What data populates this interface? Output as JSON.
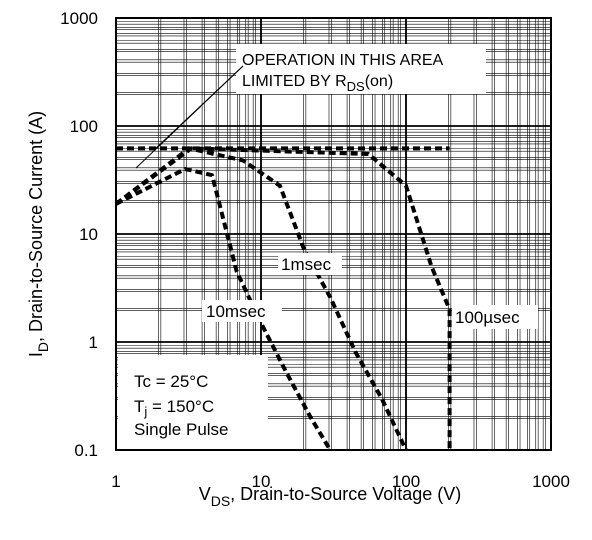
{
  "chart_data": {
    "type": "line",
    "title": "",
    "xlabel": {
      "main": "V",
      "sub": "DS",
      "rest": ", Drain-to-Source Voltage (V)"
    },
    "ylabel": {
      "main": "I",
      "sub": "D",
      "rest": ",  Drain-to-Source Current (A)"
    },
    "x_scale": "log",
    "y_scale": "log",
    "xlim": [
      1,
      1000
    ],
    "ylim": [
      0.1,
      1000
    ],
    "x_ticks": [
      "1",
      "10",
      "100",
      "1000"
    ],
    "y_ticks": [
      "0.1",
      "1",
      "10",
      "100",
      "1000"
    ],
    "grid": true,
    "series": [
      {
        "name": "10msec",
        "x": [
          1,
          3,
          4.6,
          6.8,
          10,
          15,
          22,
          30
        ],
        "y": [
          19,
          40,
          35,
          4.5,
          1.5,
          0.52,
          0.2,
          0.1
        ]
      },
      {
        "name": "1msec",
        "x": [
          1,
          3.2,
          7.5,
          13.5,
          20,
          30,
          45,
          68,
          100
        ],
        "y": [
          19,
          62,
          48,
          28,
          7,
          2.6,
          0.8,
          0.3,
          0.1
        ]
      },
      {
        "name": "100µsec",
        "x": [
          1,
          3.3,
          55,
          100,
          150,
          200,
          200
        ],
        "y": [
          19,
          62,
          55,
          28,
          5,
          2,
          0.1
        ]
      },
      {
        "name": "RDS(on) limit",
        "x": [
          1,
          200
        ],
        "y": [
          62,
          62
        ]
      }
    ],
    "annotations": {
      "limit_line1": "OPERATION IN THIS AREA",
      "limit_line2_pre": "LIMITED BY R",
      "limit_line2_sub": "DS",
      "limit_line2_post": "(on)",
      "label_1msec": "1msec",
      "label_10msec": "10msec",
      "label_100usec": "100µsec",
      "cond_tc": "Tc = 25°C",
      "cond_tj_pre": "T",
      "cond_tj_sub": "j",
      "cond_tj_post": " = 150°C",
      "cond_pulse": "Single Pulse"
    }
  }
}
